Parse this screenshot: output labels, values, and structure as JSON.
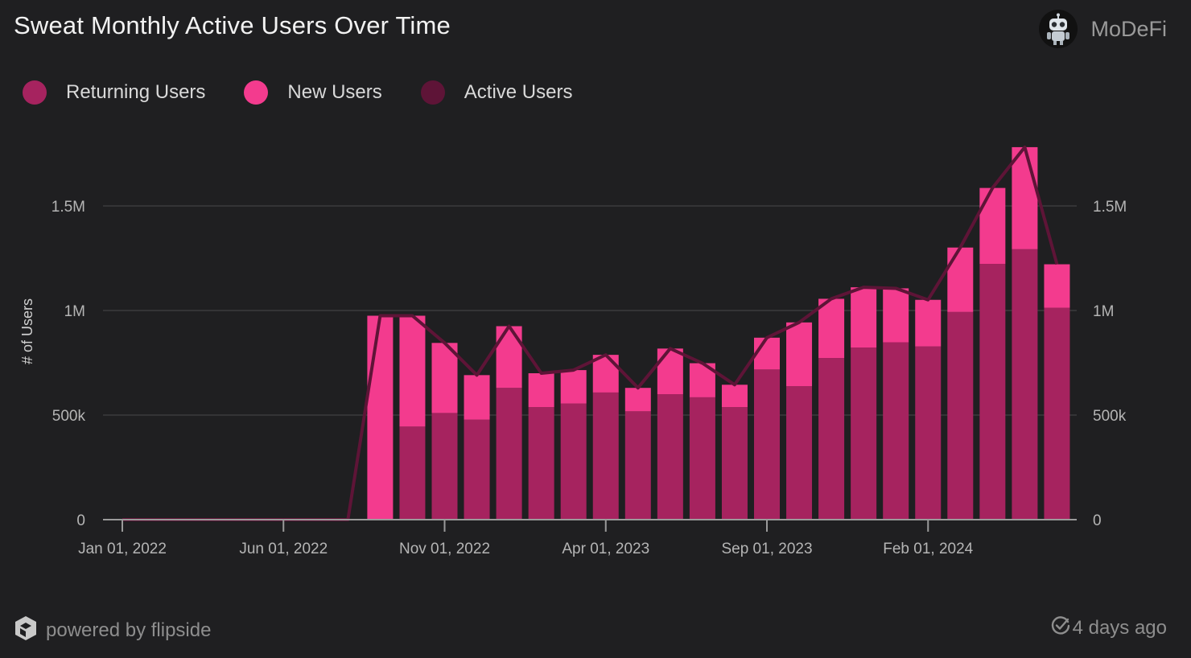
{
  "header": {
    "title": "Sweat Monthly Active Users Over Time",
    "brand": "MoDeFi"
  },
  "footer": {
    "powered_by": "powered by flipside",
    "updated": "4 days ago"
  },
  "colors": {
    "returning": "#a6235f",
    "new": "#f33b8e",
    "active": "#5e1437",
    "grid": "#3b3b3e",
    "axis": "#9a9a9a",
    "tick_text": "#b5b5b5"
  },
  "chart_data": {
    "type": "bar",
    "stacked": true,
    "title": "Sweat Monthly Active Users Over Time",
    "ylabel": "# of Users",
    "ylim": [
      0,
      1800000
    ],
    "y_ticks": [
      0,
      500000,
      1000000,
      1500000
    ],
    "y_tick_labels": [
      "0",
      "500k",
      "1M",
      "1.5M"
    ],
    "x_ticks": [
      "2022-01",
      "2022-06",
      "2022-11",
      "2023-04",
      "2023-09",
      "2024-02"
    ],
    "x_tick_labels": [
      "Jan 01, 2022",
      "Jun 01, 2022",
      "Nov 01, 2022",
      "Apr 01, 2023",
      "Sep 01, 2023",
      "Feb 01, 2024"
    ],
    "legend": [
      "Returning Users",
      "New Users",
      "Active Users"
    ],
    "legend_position": "top-left",
    "months": [
      "2022-01",
      "2022-02",
      "2022-03",
      "2022-04",
      "2022-05",
      "2022-06",
      "2022-07",
      "2022-08",
      "2022-09",
      "2022-10",
      "2022-11",
      "2022-12",
      "2023-01",
      "2023-02",
      "2023-03",
      "2023-04",
      "2023-05",
      "2023-06",
      "2023-07",
      "2023-08",
      "2023-09",
      "2023-10",
      "2023-11",
      "2023-12",
      "2024-01",
      "2024-02",
      "2024-03",
      "2024-04",
      "2024-05",
      "2024-06"
    ],
    "series": [
      {
        "name": "Returning Users",
        "kind": "bar",
        "values": [
          0,
          0,
          0,
          0,
          0,
          0,
          0,
          0,
          0,
          445000,
          510000,
          478000,
          630000,
          538000,
          555000,
          608000,
          518000,
          600000,
          585000,
          538000,
          718000,
          638000,
          773000,
          823000,
          848000,
          828000,
          993000,
          1223000,
          1293000,
          1013000
        ]
      },
      {
        "name": "New Users",
        "kind": "bar",
        "values": [
          0,
          0,
          0,
          0,
          0,
          0,
          0,
          0,
          975000,
          530000,
          335000,
          213000,
          295000,
          162000,
          160000,
          180000,
          112000,
          218000,
          163000,
          107000,
          152000,
          305000,
          283000,
          288000,
          258000,
          223000,
          308000,
          363000,
          488000,
          208000
        ]
      },
      {
        "name": "Active Users",
        "kind": "line",
        "values": [
          0,
          0,
          0,
          0,
          0,
          0,
          0,
          0,
          975000,
          975000,
          845000,
          691000,
          925000,
          700000,
          715000,
          788000,
          630000,
          818000,
          748000,
          645000,
          870000,
          943000,
          1056000,
          1111000,
          1106000,
          1051000,
          1301000,
          1586000,
          1781000,
          1221000
        ]
      }
    ]
  }
}
